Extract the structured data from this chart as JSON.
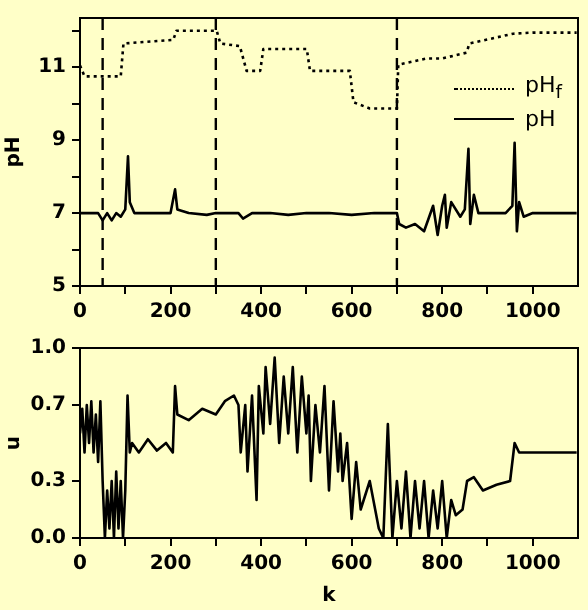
{
  "chart_data": [
    {
      "type": "line",
      "ylabel": "pH",
      "xlim": [
        0,
        1100
      ],
      "ylim": [
        5,
        12.35
      ],
      "xticks": [
        0,
        {
          "value": 100,
          "label": null
        },
        200,
        {
          "value": 300,
          "label": null
        },
        400,
        {
          "value": 500,
          "label": null
        },
        600,
        {
          "value": 700,
          "label": null
        },
        800,
        {
          "value": 900,
          "label": null
        },
        1000
      ],
      "yticks": [
        5,
        {
          "value": 6,
          "label": null
        },
        7,
        {
          "value": 8,
          "label": null
        },
        9,
        {
          "value": 10,
          "label": null
        },
        11,
        {
          "value": 12,
          "label": null
        }
      ],
      "grid": false,
      "legend": "top right",
      "ref_lines": [
        {
          "axis": "x",
          "value": 50,
          "line_style": "dashed"
        },
        {
          "axis": "x",
          "value": 300,
          "line_style": "dashed"
        },
        {
          "axis": "x",
          "value": 700,
          "line_style": "dashed"
        }
      ],
      "series": [
        {
          "name": "pH$_{f}$",
          "color": "#000000",
          "line_style": "dotted",
          "x": [
            0,
            5,
            10,
            50,
            90,
            96,
            206,
            213,
            302,
            310,
            353,
            368,
            398,
            405,
            501,
            508,
            596,
            604,
            640,
            700,
            703,
            766,
            800,
            854,
            860,
            957,
            1000,
            1097
          ],
          "values": [
            11.05,
            10.9,
            10.75,
            10.75,
            10.75,
            11.65,
            11.75,
            12.0,
            12.0,
            11.65,
            11.58,
            10.9,
            10.9,
            11.5,
            11.5,
            10.9,
            10.9,
            10.04,
            9.87,
            9.87,
            11.07,
            11.24,
            11.24,
            11.4,
            11.65,
            11.92,
            11.95,
            11.95
          ]
        },
        {
          "name": "pH",
          "color": "#000000",
          "line_style": "solid",
          "x": [
            0,
            40,
            50,
            60,
            70,
            80,
            90,
            100,
            106,
            110,
            120,
            150,
            200,
            210,
            215,
            240,
            280,
            300,
            320,
            350,
            360,
            380,
            420,
            460,
            500,
            550,
            600,
            650,
            700,
            705,
            720,
            740,
            760,
            780,
            790,
            800,
            806,
            810,
            820,
            840,
            850,
            858,
            862,
            870,
            880,
            900,
            940,
            955,
            960,
            965,
            970,
            980,
            1000,
            1050,
            1097
          ],
          "values": [
            7.0,
            7.0,
            6.8,
            7.0,
            6.8,
            7.0,
            6.9,
            7.1,
            8.56,
            7.3,
            7.0,
            7.0,
            7.0,
            7.65,
            7.1,
            7.0,
            6.95,
            7.0,
            7.0,
            7.0,
            6.85,
            7.0,
            7.0,
            6.95,
            7.0,
            7.0,
            6.95,
            7.0,
            7.0,
            6.7,
            6.6,
            6.7,
            6.5,
            7.2,
            6.4,
            7.2,
            7.5,
            6.6,
            7.3,
            6.9,
            7.1,
            8.76,
            6.7,
            7.5,
            7.0,
            7.0,
            7.0,
            7.2,
            8.93,
            6.5,
            7.3,
            6.9,
            7.0,
            7.0,
            7.0
          ]
        }
      ]
    },
    {
      "type": "line",
      "ylabel": "u",
      "xlabel": "k",
      "xlim": [
        0,
        1100
      ],
      "ylim": [
        0,
        1
      ],
      "xticks": [
        0,
        {
          "value": 100,
          "label": null
        },
        200,
        {
          "value": 300,
          "label": null
        },
        400,
        {
          "value": 500,
          "label": null
        },
        600,
        {
          "value": 700,
          "label": null
        },
        800,
        {
          "value": 900,
          "label": null
        },
        1000
      ],
      "yticks": [
        {
          "value": 0,
          "label": "0.0"
        },
        0.3,
        0.7,
        {
          "value": 1,
          "label": "1.0"
        }
      ],
      "grid": false,
      "series": [
        {
          "color": "#000000",
          "x": [
            0,
            5,
            10,
            15,
            20,
            25,
            30,
            35,
            40,
            45,
            50,
            55,
            60,
            65,
            70,
            75,
            80,
            85,
            90,
            95,
            100,
            105,
            110,
            115,
            130,
            150,
            170,
            190,
            205,
            210,
            215,
            240,
            270,
            300,
            320,
            340,
            350,
            355,
            365,
            370,
            380,
            390,
            395,
            405,
            410,
            420,
            430,
            440,
            450,
            460,
            470,
            480,
            490,
            500,
            505,
            510,
            520,
            530,
            540,
            550,
            560,
            570,
            575,
            580,
            590,
            600,
            610,
            620,
            640,
            660,
            670,
            680,
            690,
            700,
            710,
            720,
            730,
            740,
            750,
            760,
            770,
            780,
            790,
            800,
            810,
            820,
            830,
            845,
            855,
            870,
            890,
            920,
            950,
            960,
            970,
            1000,
            1050,
            1097
          ],
          "values": [
            0.55,
            0.68,
            0.45,
            0.7,
            0.5,
            0.72,
            0.45,
            0.65,
            0.4,
            0.72,
            0.3,
            0.0,
            0.25,
            0.05,
            0.3,
            0.0,
            0.35,
            0.05,
            0.3,
            0.0,
            0.25,
            0.75,
            0.45,
            0.5,
            0.45,
            0.52,
            0.46,
            0.5,
            0.45,
            0.8,
            0.65,
            0.62,
            0.68,
            0.65,
            0.72,
            0.75,
            0.7,
            0.45,
            0.7,
            0.35,
            0.75,
            0.2,
            0.8,
            0.55,
            0.9,
            0.6,
            0.95,
            0.5,
            0.85,
            0.55,
            0.9,
            0.45,
            0.85,
            0.55,
            0.75,
            0.3,
            0.7,
            0.45,
            0.8,
            0.25,
            0.72,
            0.35,
            0.55,
            0.3,
            0.5,
            0.1,
            0.4,
            0.15,
            0.3,
            0.05,
            0.0,
            0.6,
            0.0,
            0.3,
            0.05,
            0.35,
            0.0,
            0.3,
            0.05,
            0.3,
            0.0,
            0.25,
            0.05,
            0.3,
            0.0,
            0.2,
            0.12,
            0.15,
            0.3,
            0.32,
            0.25,
            0.28,
            0.3,
            0.5,
            0.45,
            0.45,
            0.45,
            0.45
          ]
        }
      ]
    }
  ]
}
